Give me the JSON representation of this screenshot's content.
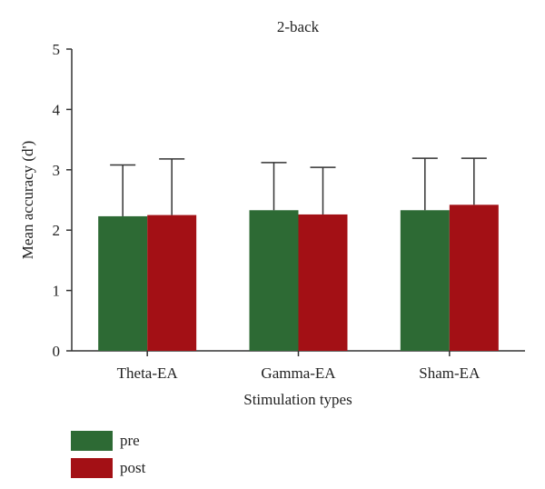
{
  "chart_data": {
    "type": "bar",
    "title": "2-back",
    "xlabel": "Stimulation types",
    "ylabel": "Mean accuracy (d')",
    "categories": [
      "Theta-EA",
      "Gamma-EA",
      "Sham-EA"
    ],
    "ylim": [
      0,
      5
    ],
    "yticks": [
      "0",
      "1",
      "2",
      "3",
      "4",
      "5"
    ],
    "grid": false,
    "legend_position": "bottom-left",
    "series": [
      {
        "name": "pre",
        "color": "#2d6a34",
        "values": [
          2.23,
          2.33,
          2.33
        ],
        "error_upper": [
          0.85,
          0.79,
          0.86
        ]
      },
      {
        "name": "post",
        "color": "#a31015",
        "values": [
          2.25,
          2.26,
          2.42
        ],
        "error_upper": [
          0.93,
          0.78,
          0.77
        ]
      }
    ]
  }
}
